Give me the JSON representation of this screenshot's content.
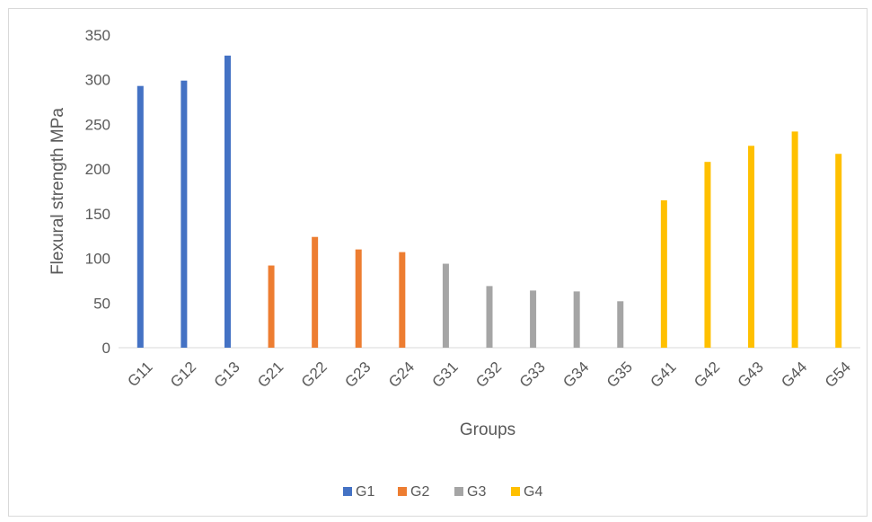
{
  "chart_data": {
    "type": "bar",
    "title": "",
    "xlabel": "Groups",
    "ylabel": "Flexural strength MPa",
    "ylim": [
      0,
      350
    ],
    "yticks": [
      0,
      50,
      100,
      150,
      200,
      250,
      300,
      350
    ],
    "grid": false,
    "legend_position": "bottom",
    "categories": [
      "G11",
      "G12",
      "G13",
      "G21",
      "G22",
      "G23",
      "G24",
      "G31",
      "G32",
      "G33",
      "G34",
      "G35",
      "G41",
      "G42",
      "G43",
      "G44",
      "G54"
    ],
    "series": [
      {
        "name": "G1",
        "color": "#4472C4",
        "values": [
          293,
          299,
          327,
          null,
          null,
          null,
          null,
          null,
          null,
          null,
          null,
          null,
          null,
          null,
          null,
          null,
          null
        ]
      },
      {
        "name": "G2",
        "color": "#ED7D31",
        "values": [
          null,
          null,
          null,
          92,
          124,
          110,
          107,
          null,
          null,
          null,
          null,
          null,
          null,
          null,
          null,
          null,
          null
        ]
      },
      {
        "name": "G3",
        "color": "#A5A5A5",
        "values": [
          null,
          null,
          null,
          null,
          null,
          null,
          null,
          94,
          69,
          64,
          63,
          52,
          null,
          null,
          null,
          null,
          null
        ]
      },
      {
        "name": "G4",
        "color": "#FFC000",
        "values": [
          null,
          null,
          null,
          null,
          null,
          null,
          null,
          null,
          null,
          null,
          null,
          null,
          165,
          208,
          226,
          242,
          217
        ]
      }
    ]
  }
}
